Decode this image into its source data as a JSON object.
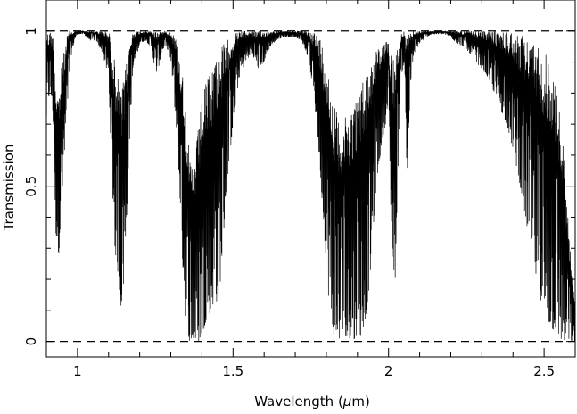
{
  "chart_data": {
    "type": "line",
    "title": "",
    "xlabel_prefix": "Wavelength (",
    "xlabel_symbol": "μ",
    "xlabel_suffix": "m)",
    "ylabel": "Transmission",
    "xlim": [
      0.9,
      2.6
    ],
    "ylim": [
      -0.05,
      1.1
    ],
    "x_ticks": [
      {
        "value": 1.0,
        "label": "1"
      },
      {
        "value": 1.5,
        "label": "1.5"
      },
      {
        "value": 2.0,
        "label": "2"
      },
      {
        "value": 2.5,
        "label": "2.5"
      }
    ],
    "y_ticks": [
      {
        "value": 0,
        "label": "0"
      },
      {
        "value": 0.5,
        "label": "0.5"
      },
      {
        "value": 1,
        "label": "1"
      }
    ],
    "x_minor_step": 0.1,
    "y_minor_step": 0.1,
    "reference_lines": [
      {
        "y": 0,
        "style": "dashed"
      },
      {
        "y": 1,
        "style": "dashed"
      }
    ],
    "series": [
      {
        "color": "#000000",
        "x_start": 0.9,
        "x_end": 2.6,
        "profile": [
          [
            0.9,
            0.7,
            1.0
          ],
          [
            0.91,
            0.8,
            1.0
          ],
          [
            0.92,
            0.75,
            1.0
          ],
          [
            0.93,
            0.35,
            0.85
          ],
          [
            0.94,
            0.28,
            0.8
          ],
          [
            0.95,
            0.45,
            0.9
          ],
          [
            0.96,
            0.6,
            0.95
          ],
          [
            0.97,
            0.8,
            1.0
          ],
          [
            0.98,
            0.92,
            1.0
          ],
          [
            0.99,
            0.97,
            1.0
          ],
          [
            1.0,
            0.99,
            1.0
          ],
          [
            1.02,
            0.99,
            1.0
          ],
          [
            1.04,
            0.97,
            1.0
          ],
          [
            1.06,
            0.97,
            1.0
          ],
          [
            1.08,
            0.93,
            1.0
          ],
          [
            1.1,
            0.85,
            1.0
          ],
          [
            1.11,
            0.55,
            0.98
          ],
          [
            1.12,
            0.3,
            0.9
          ],
          [
            1.13,
            0.22,
            0.85
          ],
          [
            1.14,
            0.1,
            0.8
          ],
          [
            1.15,
            0.2,
            0.85
          ],
          [
            1.16,
            0.45,
            0.92
          ],
          [
            1.17,
            0.72,
            0.98
          ],
          [
            1.18,
            0.88,
            1.0
          ],
          [
            1.2,
            0.96,
            1.0
          ],
          [
            1.22,
            0.97,
            1.0
          ],
          [
            1.24,
            0.94,
            1.0
          ],
          [
            1.25,
            0.86,
            1.0
          ],
          [
            1.26,
            0.88,
            1.0
          ],
          [
            1.27,
            0.93,
            1.0
          ],
          [
            1.28,
            0.95,
            1.0
          ],
          [
            1.29,
            0.94,
            1.0
          ],
          [
            1.3,
            0.9,
            1.0
          ],
          [
            1.31,
            0.8,
            0.99
          ],
          [
            1.32,
            0.62,
            0.97
          ],
          [
            1.33,
            0.45,
            0.92
          ],
          [
            1.34,
            0.2,
            0.85
          ],
          [
            1.35,
            0.05,
            0.75
          ],
          [
            1.36,
            0.0,
            0.6
          ],
          [
            1.37,
            0.0,
            0.55
          ],
          [
            1.38,
            0.0,
            0.62
          ],
          [
            1.39,
            0.0,
            0.7
          ],
          [
            1.4,
            0.02,
            0.78
          ],
          [
            1.41,
            0.05,
            0.82
          ],
          [
            1.42,
            0.1,
            0.86
          ],
          [
            1.43,
            0.08,
            0.88
          ],
          [
            1.44,
            0.15,
            0.92
          ],
          [
            1.45,
            0.12,
            0.94
          ],
          [
            1.46,
            0.2,
            0.95
          ],
          [
            1.47,
            0.35,
            0.96
          ],
          [
            1.48,
            0.5,
            0.97
          ],
          [
            1.5,
            0.7,
            0.99
          ],
          [
            1.52,
            0.85,
            1.0
          ],
          [
            1.54,
            0.9,
            1.0
          ],
          [
            1.56,
            0.93,
            1.0
          ],
          [
            1.58,
            0.88,
            1.0
          ],
          [
            1.6,
            0.9,
            1.0
          ],
          [
            1.62,
            0.95,
            1.0
          ],
          [
            1.64,
            0.97,
            1.0
          ],
          [
            1.66,
            0.98,
            1.0
          ],
          [
            1.68,
            0.98,
            1.0
          ],
          [
            1.7,
            0.98,
            1.0
          ],
          [
            1.72,
            0.97,
            1.0
          ],
          [
            1.74,
            0.92,
            1.0
          ],
          [
            1.76,
            0.8,
            1.0
          ],
          [
            1.78,
            0.55,
            0.98
          ],
          [
            1.79,
            0.4,
            0.95
          ],
          [
            1.8,
            0.25,
            0.92
          ],
          [
            1.81,
            0.1,
            0.85
          ],
          [
            1.82,
            0.03,
            0.8
          ],
          [
            1.83,
            0.0,
            0.75
          ],
          [
            1.84,
            0.01,
            0.72
          ],
          [
            1.85,
            0.0,
            0.7
          ],
          [
            1.86,
            0.02,
            0.72
          ],
          [
            1.87,
            0.0,
            0.74
          ],
          [
            1.88,
            0.02,
            0.76
          ],
          [
            1.89,
            0.0,
            0.78
          ],
          [
            1.9,
            0.03,
            0.8
          ],
          [
            1.91,
            0.01,
            0.82
          ],
          [
            1.92,
            0.05,
            0.85
          ],
          [
            1.93,
            0.1,
            0.88
          ],
          [
            1.94,
            0.2,
            0.9
          ],
          [
            1.95,
            0.35,
            0.92
          ],
          [
            1.96,
            0.5,
            0.94
          ],
          [
            1.98,
            0.65,
            0.96
          ],
          [
            2.0,
            0.75,
            0.97
          ],
          [
            2.01,
            0.3,
            0.95
          ],
          [
            2.02,
            0.15,
            0.92
          ],
          [
            2.03,
            0.55,
            0.96
          ],
          [
            2.04,
            0.85,
            0.99
          ],
          [
            2.05,
            0.9,
            1.0
          ],
          [
            2.06,
            0.5,
            0.98
          ],
          [
            2.07,
            0.82,
            1.0
          ],
          [
            2.08,
            0.92,
            1.0
          ],
          [
            2.1,
            0.96,
            1.0
          ],
          [
            2.12,
            0.98,
            1.0
          ],
          [
            2.14,
            0.99,
            1.0
          ],
          [
            2.16,
            0.99,
            1.0
          ],
          [
            2.18,
            0.99,
            1.0
          ],
          [
            2.2,
            0.98,
            1.0
          ],
          [
            2.22,
            0.96,
            1.0
          ],
          [
            2.24,
            0.95,
            1.0
          ],
          [
            2.26,
            0.93,
            1.0
          ],
          [
            2.28,
            0.9,
            1.0
          ],
          [
            2.3,
            0.88,
            1.0
          ],
          [
            2.32,
            0.85,
            1.0
          ],
          [
            2.34,
            0.8,
            1.0
          ],
          [
            2.36,
            0.75,
            1.0
          ],
          [
            2.38,
            0.7,
            1.0
          ],
          [
            2.4,
            0.62,
            1.0
          ],
          [
            2.42,
            0.52,
            0.99
          ],
          [
            2.44,
            0.4,
            0.98
          ],
          [
            2.46,
            0.28,
            0.97
          ],
          [
            2.48,
            0.18,
            0.96
          ],
          [
            2.5,
            0.08,
            0.94
          ],
          [
            2.52,
            0.05,
            0.9
          ],
          [
            2.54,
            0.02,
            0.82
          ],
          [
            2.56,
            0.0,
            0.65
          ],
          [
            2.58,
            0.0,
            0.35
          ],
          [
            2.6,
            0.0,
            0.1
          ]
        ]
      }
    ]
  }
}
